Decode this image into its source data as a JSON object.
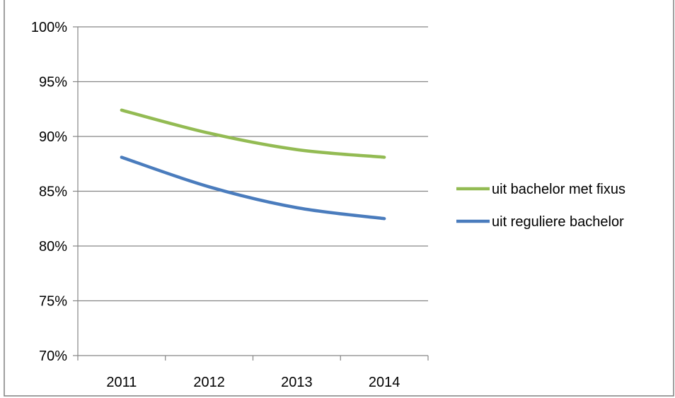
{
  "chart_data": {
    "type": "line",
    "categories": [
      "2011",
      "2012",
      "2013",
      "2014"
    ],
    "y_ticks": [
      "70%",
      "75%",
      "80%",
      "85%",
      "90%",
      "95%",
      "100%"
    ],
    "ylim": [
      70,
      100
    ],
    "y_unit": "%",
    "grid": true,
    "legend_position": "right",
    "series": [
      {
        "name": "uit bachelor met fixus",
        "color": "#93bb53",
        "values": [
          92.4,
          90.3,
          88.8,
          88.1
        ]
      },
      {
        "name": "uit reguliere bachelor",
        "color": "#4a7cbd",
        "values": [
          88.1,
          85.4,
          83.5,
          82.5
        ]
      }
    ]
  }
}
